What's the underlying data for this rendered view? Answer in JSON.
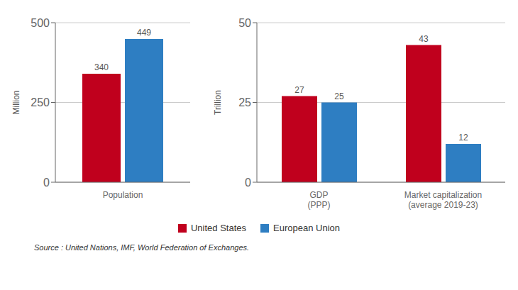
{
  "chart_data": [
    {
      "type": "bar",
      "categories": [
        "Population"
      ],
      "series": [
        {
          "name": "United States",
          "color": "#C0001D",
          "values": [
            340
          ]
        },
        {
          "name": "European Union",
          "color": "#2E7EC2",
          "values": [
            449
          ]
        }
      ],
      "ylabel": "Million",
      "ylim": [
        0,
        500
      ],
      "yticks": [
        0,
        250,
        500
      ],
      "grid": true,
      "data_labels": true,
      "legend": "bottom",
      "annotations": [
        "Source : United Nations, IMF, World Federation of Exchanges."
      ]
    },
    {
      "type": "bar",
      "categories": [
        "GDP\n(PPP)",
        "Market capitalization\n(average 2019-23)"
      ],
      "series": [
        {
          "name": "United States",
          "color": "#C0001D",
          "values": [
            27,
            43
          ]
        },
        {
          "name": "European Union",
          "color": "#2E7EC2",
          "values": [
            25,
            12
          ]
        }
      ],
      "ylabel": "Trillion",
      "ylim": [
        0,
        50
      ],
      "yticks": [
        0,
        25,
        50
      ],
      "grid": true,
      "data_labels": true,
      "legend": "bottom"
    }
  ]
}
